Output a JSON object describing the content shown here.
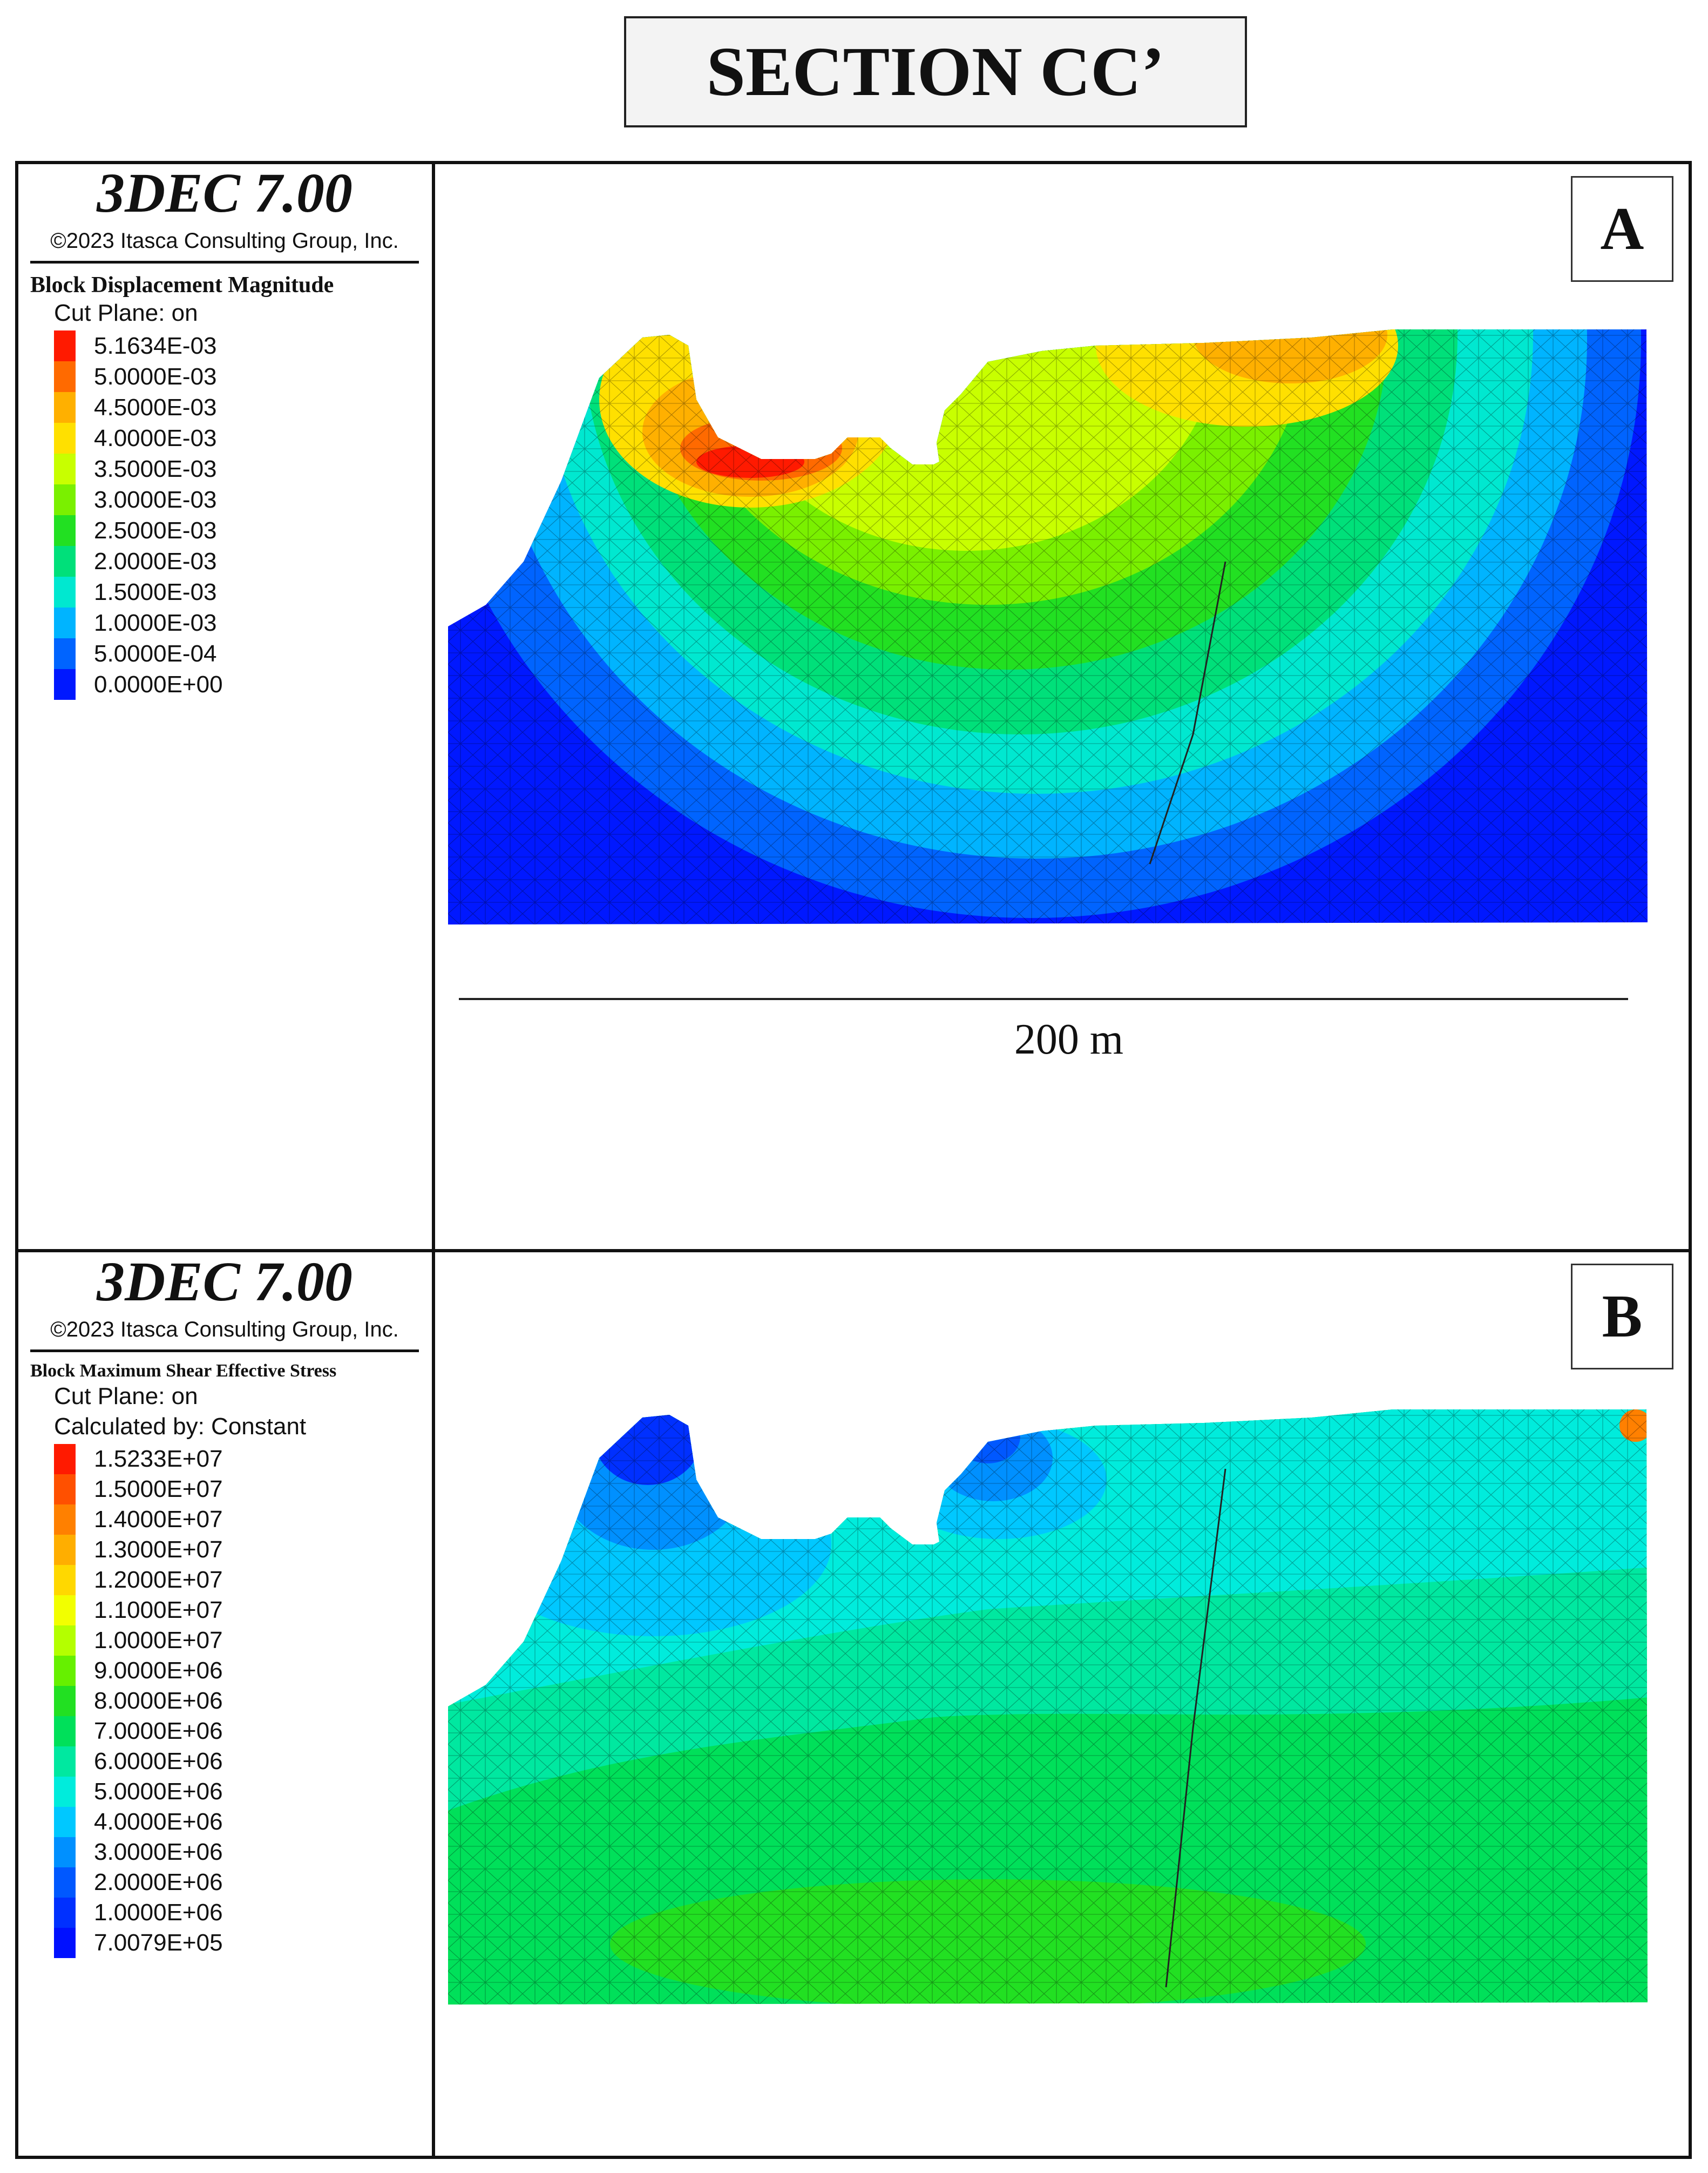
{
  "figure_title": "SECTION CC’",
  "panels": [
    {
      "label": "A",
      "software": "3DEC 7.00",
      "copyright": "©2023 Itasca Consulting Group, Inc.",
      "quantity": "Block  Displacement Magnitude",
      "subtitles": [
        "Cut Plane: on"
      ],
      "scale": [
        {
          "value": "5.1634E-03",
          "color": "#ff1a00"
        },
        {
          "value": "5.0000E-03",
          "color": "#ff6a00"
        },
        {
          "value": "4.5000E-03",
          "color": "#ffb000"
        },
        {
          "value": "4.0000E-03",
          "color": "#ffe000"
        },
        {
          "value": "3.5000E-03",
          "color": "#c8ff00"
        },
        {
          "value": "3.0000E-03",
          "color": "#7af000"
        },
        {
          "value": "2.5000E-03",
          "color": "#22e022"
        },
        {
          "value": "2.0000E-03",
          "color": "#00e07a"
        },
        {
          "value": "1.5000E-03",
          "color": "#00e8d0"
        },
        {
          "value": "1.0000E-03",
          "color": "#00b4ff"
        },
        {
          "value": "5.0000E-04",
          "color": "#0064ff"
        },
        {
          "value": "0.0000E+00",
          "color": "#0018ff"
        }
      ],
      "scale_bar": "200 m"
    },
    {
      "label": "B",
      "software": "3DEC 7.00",
      "copyright": "©2023 Itasca Consulting Group, Inc.",
      "quantity": "Block  Maximum Shear Effective Stress",
      "subtitles": [
        "Cut Plane: on",
        "Calculated by: Constant"
      ],
      "scale": [
        {
          "value": "1.5233E+07",
          "color": "#ff1a00"
        },
        {
          "value": "1.5000E+07",
          "color": "#ff5000"
        },
        {
          "value": "1.4000E+07",
          "color": "#ff8000"
        },
        {
          "value": "1.3000E+07",
          "color": "#ffae00"
        },
        {
          "value": "1.2000E+07",
          "color": "#ffd800"
        },
        {
          "value": "1.1000E+07",
          "color": "#f2ff00"
        },
        {
          "value": "1.0000E+07",
          "color": "#b4ff00"
        },
        {
          "value": "9.0000E+06",
          "color": "#66f000"
        },
        {
          "value": "8.0000E+06",
          "color": "#22e022"
        },
        {
          "value": "7.0000E+06",
          "color": "#00e05a"
        },
        {
          "value": "6.0000E+06",
          "color": "#00e8a0"
        },
        {
          "value": "5.0000E+06",
          "color": "#00ecdc"
        },
        {
          "value": "4.0000E+06",
          "color": "#00c8ff"
        },
        {
          "value": "3.0000E+06",
          "color": "#0090ff"
        },
        {
          "value": "2.0000E+06",
          "color": "#0058ff"
        },
        {
          "value": "1.0000E+06",
          "color": "#0030ff"
        },
        {
          "value": "7.0079E+05",
          "color": "#0010ff"
        }
      ]
    }
  ]
}
